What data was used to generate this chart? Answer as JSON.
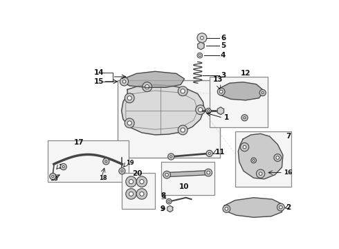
{
  "bg_color": "#ffffff",
  "figsize": [
    4.9,
    3.6
  ],
  "dpi": 100,
  "gray": "#444444",
  "dark": "#111111",
  "light_gray": "#aaaaaa",
  "box_edge": "#888888",
  "box_face": "#f5f5f5"
}
